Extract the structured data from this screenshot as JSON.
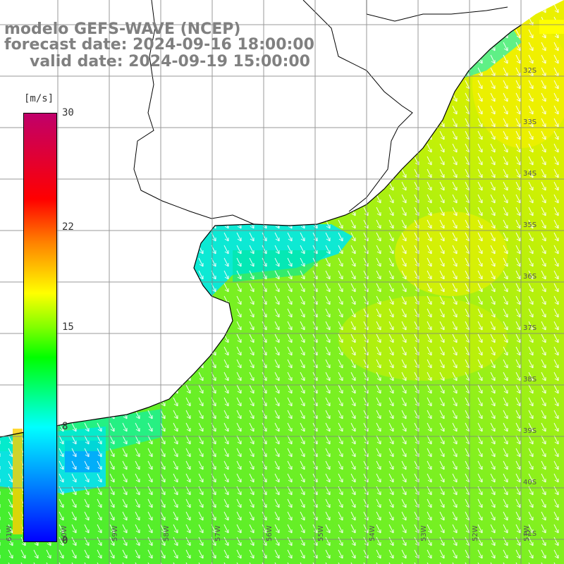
{
  "title": {
    "line1": "modelo GEFS-WAVE (NCEP)",
    "line2": "forecast date: 2024-09-16 18:00:00",
    "line3": "valid date: 2024-09-19 15:00:00"
  },
  "colorbar": {
    "unit": "[m/s]",
    "ticks": [
      "30",
      "22",
      "15",
      "8",
      "0"
    ],
    "tick_values": [
      30,
      22,
      15,
      8,
      0
    ],
    "min": 0,
    "max": 30
  },
  "lat_labels": [
    "32S",
    "33S",
    "34S",
    "35S",
    "36S",
    "37S",
    "38S",
    "39S",
    "40S",
    "41S"
  ],
  "lon_labels": [
    "61W",
    "60W",
    "59W",
    "58W",
    "57W",
    "56W",
    "55W",
    "54W",
    "53W",
    "52W",
    "51W"
  ],
  "colors": {
    "land": "#ffffff",
    "coast": "#000000",
    "grid": "#808080",
    "arrows": "#ffffff",
    "title": "#808080"
  }
}
